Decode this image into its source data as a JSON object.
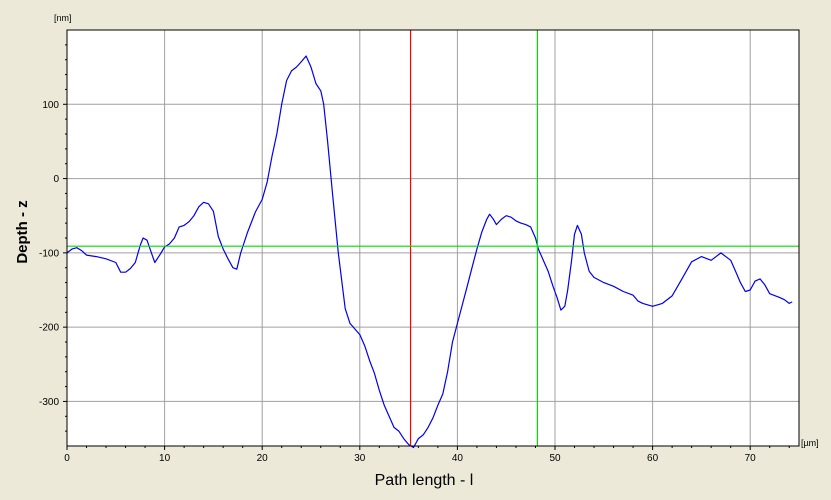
{
  "chart_data": {
    "type": "line",
    "title": "",
    "xlabel": "Path length - l",
    "ylabel": "Depth - z",
    "x_unit": "[µm]",
    "y_unit": "[nm]",
    "xlim": [
      0,
      75
    ],
    "ylim": [
      -360,
      200
    ],
    "x_ticks": [
      0,
      10,
      20,
      30,
      40,
      50,
      60,
      70
    ],
    "y_ticks": [
      100,
      0,
      -100,
      -200,
      -300
    ],
    "grid": true,
    "legend": "none",
    "colors": {
      "line": "#0000ee",
      "vertical_cursor_red": "#ff0000",
      "cursor_green": "#00dd00",
      "grid": "#a0a0a0",
      "plot_bg": "#ffffff",
      "frame_bg": "#ece9d8"
    },
    "cursors": {
      "red_vertical_x": 35.2,
      "green_vertical_x": 48.2,
      "green_horizontal_y": -91
    },
    "series": [
      {
        "color": "#0000ee",
        "points": [
          [
            0,
            -100
          ],
          [
            0.5,
            -95
          ],
          [
            1,
            -93
          ],
          [
            1.5,
            -97
          ],
          [
            2,
            -103
          ],
          [
            3,
            -105
          ],
          [
            4,
            -108
          ],
          [
            5,
            -113
          ],
          [
            5.5,
            -126
          ],
          [
            6,
            -126
          ],
          [
            6.5,
            -121
          ],
          [
            7,
            -113
          ],
          [
            7.5,
            -90
          ],
          [
            7.8,
            -80
          ],
          [
            8.2,
            -83
          ],
          [
            8.7,
            -102
          ],
          [
            9,
            -113
          ],
          [
            9.5,
            -103
          ],
          [
            10,
            -92
          ],
          [
            10.5,
            -88
          ],
          [
            11,
            -80
          ],
          [
            11.5,
            -65
          ],
          [
            12,
            -63
          ],
          [
            12.5,
            -58
          ],
          [
            13,
            -50
          ],
          [
            13.5,
            -38
          ],
          [
            14,
            -32
          ],
          [
            14.5,
            -34
          ],
          [
            15,
            -44
          ],
          [
            15.5,
            -78
          ],
          [
            16,
            -95
          ],
          [
            16.5,
            -108
          ],
          [
            17,
            -120
          ],
          [
            17.4,
            -122
          ],
          [
            17.8,
            -100
          ],
          [
            18.5,
            -72
          ],
          [
            19.3,
            -45
          ],
          [
            20,
            -28
          ],
          [
            20.5,
            -5
          ],
          [
            21,
            30
          ],
          [
            21.5,
            60
          ],
          [
            22,
            100
          ],
          [
            22.5,
            132
          ],
          [
            23,
            145
          ],
          [
            23.5,
            150
          ],
          [
            24,
            157
          ],
          [
            24.5,
            165
          ],
          [
            25,
            150
          ],
          [
            25.5,
            128
          ],
          [
            26,
            118
          ],
          [
            26.3,
            100
          ],
          [
            26.7,
            50
          ],
          [
            27.2,
            -20
          ],
          [
            27.8,
            -100
          ],
          [
            28.5,
            -175
          ],
          [
            29,
            -195
          ],
          [
            30,
            -210
          ],
          [
            30.5,
            -225
          ],
          [
            31,
            -245
          ],
          [
            31.5,
            -262
          ],
          [
            32,
            -285
          ],
          [
            32.5,
            -305
          ],
          [
            33,
            -320
          ],
          [
            33.5,
            -335
          ],
          [
            34,
            -340
          ],
          [
            34.5,
            -350
          ],
          [
            35,
            -358
          ],
          [
            35.5,
            -362
          ],
          [
            36,
            -350
          ],
          [
            36.5,
            -345
          ],
          [
            37,
            -335
          ],
          [
            37.5,
            -322
          ],
          [
            38,
            -305
          ],
          [
            38.5,
            -290
          ],
          [
            39,
            -260
          ],
          [
            39.5,
            -220
          ],
          [
            40,
            -195
          ],
          [
            40.5,
            -170
          ],
          [
            41,
            -145
          ],
          [
            41.5,
            -120
          ],
          [
            42,
            -95
          ],
          [
            42.5,
            -72
          ],
          [
            43,
            -55
          ],
          [
            43.3,
            -48
          ],
          [
            43.7,
            -55
          ],
          [
            44,
            -62
          ],
          [
            44.5,
            -55
          ],
          [
            45,
            -50
          ],
          [
            45.5,
            -52
          ],
          [
            46,
            -57
          ],
          [
            46.5,
            -60
          ],
          [
            47,
            -62
          ],
          [
            47.5,
            -65
          ],
          [
            48,
            -80
          ],
          [
            48.3,
            -95
          ],
          [
            48.8,
            -110
          ],
          [
            49.3,
            -125
          ],
          [
            49.8,
            -145
          ],
          [
            50.2,
            -160
          ],
          [
            50.6,
            -177
          ],
          [
            51,
            -172
          ],
          [
            51.3,
            -150
          ],
          [
            51.7,
            -110
          ],
          [
            52,
            -75
          ],
          [
            52.3,
            -63
          ],
          [
            52.7,
            -75
          ],
          [
            53,
            -100
          ],
          [
            53.5,
            -125
          ],
          [
            54,
            -133
          ],
          [
            55,
            -140
          ],
          [
            56,
            -145
          ],
          [
            57,
            -152
          ],
          [
            58,
            -157
          ],
          [
            58.5,
            -165
          ],
          [
            59,
            -168
          ],
          [
            60,
            -172
          ],
          [
            61,
            -168
          ],
          [
            62,
            -158
          ],
          [
            63,
            -135
          ],
          [
            64,
            -112
          ],
          [
            65,
            -105
          ],
          [
            66,
            -110
          ],
          [
            67,
            -100
          ],
          [
            68,
            -110
          ],
          [
            68.5,
            -125
          ],
          [
            69,
            -140
          ],
          [
            69.5,
            -152
          ],
          [
            70,
            -150
          ],
          [
            70.5,
            -138
          ],
          [
            71,
            -135
          ],
          [
            71.5,
            -143
          ],
          [
            72,
            -155
          ],
          [
            73,
            -160
          ],
          [
            73.5,
            -163
          ],
          [
            74,
            -168
          ],
          [
            74.3,
            -166
          ]
        ]
      }
    ]
  }
}
